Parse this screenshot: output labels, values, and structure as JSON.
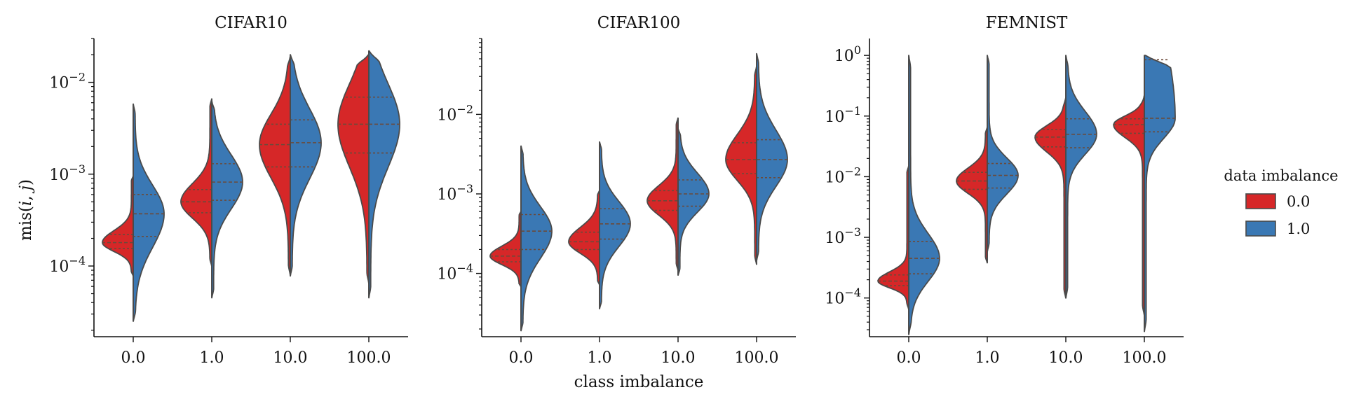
{
  "figure": {
    "xlabel": "class imbalance",
    "ylabel": "mis(i, j)",
    "legend": {
      "title": "data imbalance",
      "entries": [
        {
          "label": "0.0",
          "color": "#d62728"
        },
        {
          "label": "1.0",
          "color": "#3a78b4"
        }
      ]
    }
  },
  "chart_data": [
    {
      "type": "violin",
      "title": "CIFAR10",
      "xlabel": "",
      "ylabel": "mis(i, j)",
      "yscale": "log",
      "ylim": [
        1.7e-05,
        0.03
      ],
      "y_ticks": [
        0.0001,
        0.001,
        0.01
      ],
      "y_tick_labels": [
        "10^{-4}",
        "10^{-3}",
        "10^{-2}"
      ],
      "categories": [
        "0.0",
        "1.0",
        "10.0",
        "100.0"
      ],
      "series": [
        {
          "name": "0.0",
          "color": "#d62728",
          "groups": [
            {
              "min": 7.8e-05,
              "q1": 0.000155,
              "median": 0.00018,
              "q3": 0.00022,
              "max": 0.00095
            },
            {
              "min": 0.0001,
              "q1": 0.00038,
              "median": 0.0005,
              "q3": 0.00068,
              "max": 0.0066
            },
            {
              "min": 8e-05,
              "q1": 0.0012,
              "median": 0.0021,
              "q3": 0.0035,
              "max": 0.019
            },
            {
              "min": 6.5e-05,
              "q1": 0.0017,
              "median": 0.0035,
              "q3": 0.0069,
              "max": 0.02
            }
          ]
        },
        {
          "name": "1.0",
          "color": "#3a78b4",
          "groups": [
            {
              "min": 2.5e-05,
              "q1": 0.00021,
              "median": 0.00037,
              "q3": 0.0006,
              "max": 0.0058
            },
            {
              "min": 4.5e-05,
              "q1": 0.00052,
              "median": 0.00082,
              "q3": 0.0013,
              "max": 0.0062
            },
            {
              "min": 7.8e-05,
              "q1": 0.0012,
              "median": 0.0022,
              "q3": 0.0039,
              "max": 0.02
            },
            {
              "min": 4.5e-05,
              "q1": 0.0017,
              "median": 0.0035,
              "q3": 0.0069,
              "max": 0.022
            }
          ]
        }
      ]
    },
    {
      "type": "violin",
      "title": "CIFAR100",
      "xlabel": "class imbalance",
      "ylabel": "",
      "yscale": "log",
      "ylim": [
        1.6e-05,
        0.09
      ],
      "y_ticks": [
        0.0001,
        0.001,
        0.01
      ],
      "y_tick_labels": [
        "10^{-4}",
        "10^{-3}",
        "10^{-2}"
      ],
      "categories": [
        "0.0",
        "1.0",
        "10.0",
        "100.0"
      ],
      "series": [
        {
          "name": "0.0",
          "color": "#d62728",
          "groups": [
            {
              "min": 6.8e-05,
              "q1": 0.00014,
              "median": 0.000165,
              "q3": 0.0002,
              "max": 0.0006
            },
            {
              "min": 7.2e-05,
              "q1": 0.0002,
              "median": 0.00025,
              "q3": 0.00033,
              "max": 0.0011
            },
            {
              "min": 0.00011,
              "q1": 0.00062,
              "median": 0.00082,
              "q3": 0.0011,
              "max": 0.009
            },
            {
              "min": 0.00013,
              "q1": 0.0018,
              "median": 0.0027,
              "q3": 0.0044,
              "max": 0.04
            }
          ]
        },
        {
          "name": "1.0",
          "color": "#3a78b4",
          "groups": [
            {
              "min": 1.9e-05,
              "q1": 0.0002,
              "median": 0.00034,
              "q3": 0.00055,
              "max": 0.004
            },
            {
              "min": 3.6e-05,
              "q1": 0.00027,
              "median": 0.00042,
              "q3": 0.00065,
              "max": 0.0045
            },
            {
              "min": 9.5e-05,
              "q1": 0.0007,
              "median": 0.001,
              "q3": 0.0015,
              "max": 0.0066
            },
            {
              "min": 0.000145,
              "q1": 0.0016,
              "median": 0.0027,
              "q3": 0.0048,
              "max": 0.058
            }
          ]
        }
      ]
    },
    {
      "type": "violin",
      "title": "FEMNIST",
      "xlabel": "",
      "ylabel": "",
      "yscale": "log",
      "ylim": [
        2.3e-05,
        1.9
      ],
      "y_ticks": [
        0.0001,
        0.001,
        0.01,
        0.1,
        1
      ],
      "y_tick_labels": [
        "10^{-4}",
        "10^{-3}",
        "10^{-2}",
        "10^{-1}",
        "10^{0}"
      ],
      "categories": [
        "0.0",
        "1.0",
        "10.0",
        "100.0"
      ],
      "series": [
        {
          "name": "0.0",
          "color": "#d62728",
          "groups": [
            {
              "min": 6.5e-05,
              "q1": 0.00016,
              "median": 0.00019,
              "q3": 0.00024,
              "max": 0.015
            },
            {
              "min": 0.00038,
              "q1": 0.0062,
              "median": 0.0085,
              "q3": 0.0118,
              "max": 0.065
            },
            {
              "min": 0.0001,
              "q1": 0.031,
              "median": 0.045,
              "q3": 0.06,
              "max": 0.2
            },
            {
              "min": 5.2e-05,
              "q1": 0.052,
              "median": 0.072,
              "q3": 0.09,
              "max": 0.22
            }
          ]
        },
        {
          "name": "1.0",
          "color": "#3a78b4",
          "groups": [
            {
              "min": 2.5e-05,
              "q1": 0.00025,
              "median": 0.00045,
              "q3": 0.00085,
              "max": 1.0
            },
            {
              "min": 0.00058,
              "q1": 0.0065,
              "median": 0.0105,
              "q3": 0.0165,
              "max": 1.0
            },
            {
              "min": 0.0001,
              "q1": 0.03,
              "median": 0.05,
              "q3": 0.09,
              "max": 1.0
            },
            {
              "min": 2.8e-05,
              "q1": 0.055,
              "median": 0.092,
              "q3": 0.85,
              "max": 1.0
            }
          ]
        }
      ]
    }
  ]
}
